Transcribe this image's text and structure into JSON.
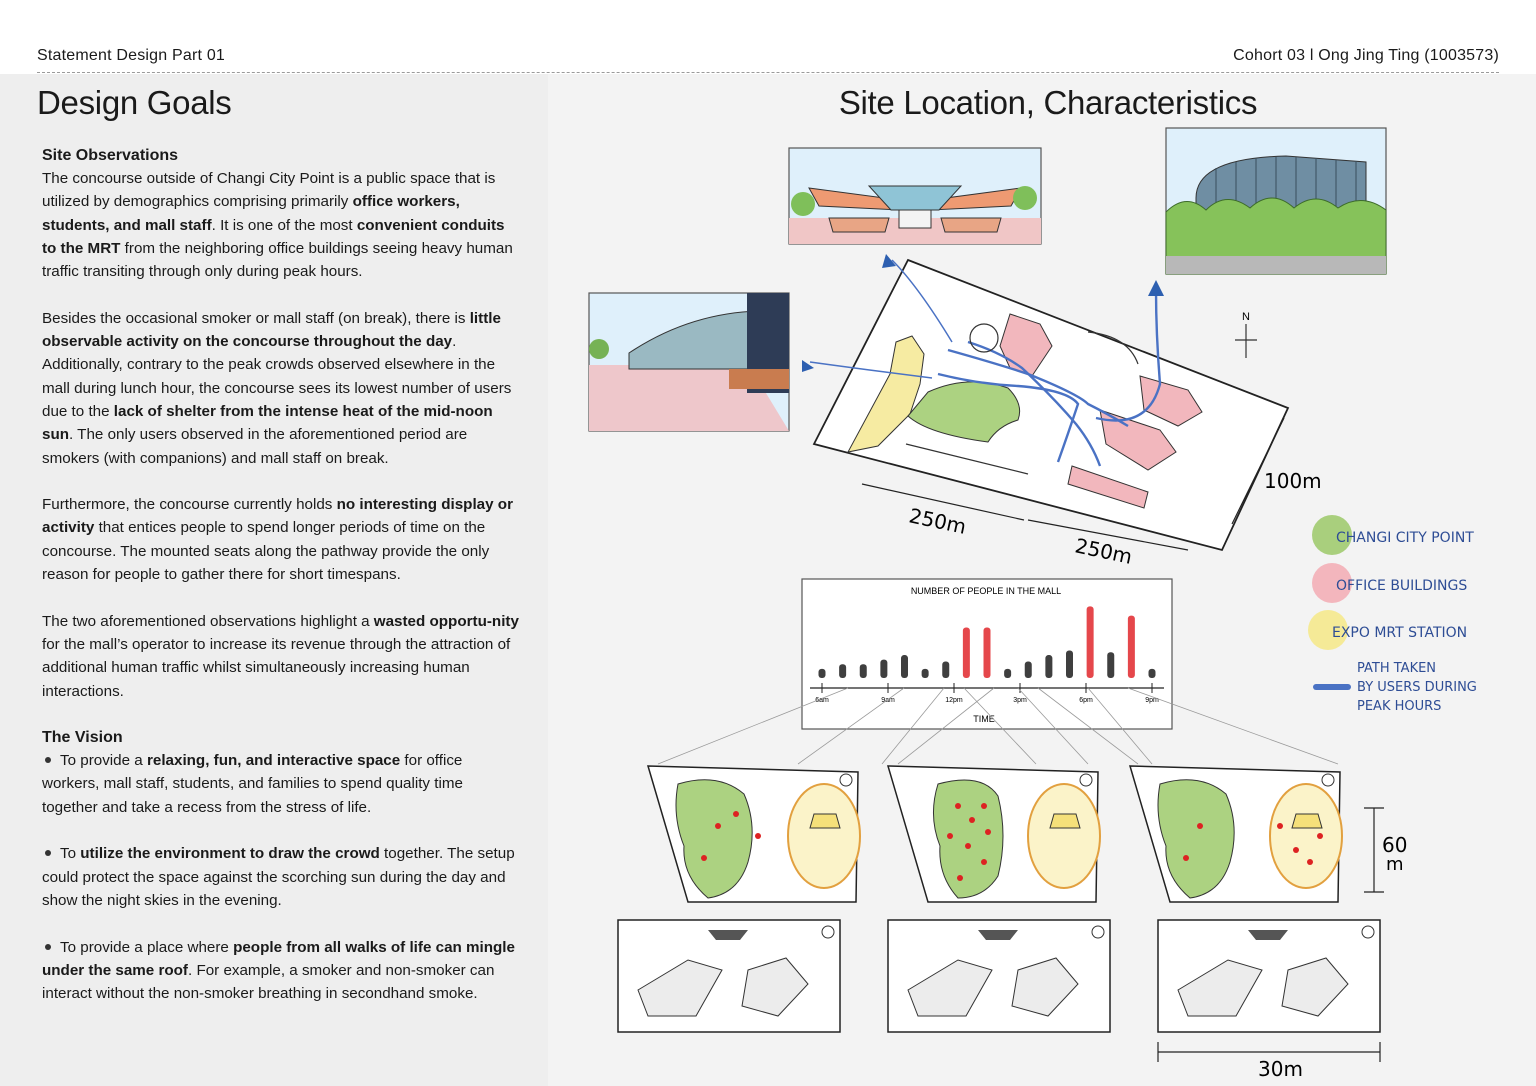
{
  "header": {
    "left": "Statement Design Part 01",
    "right": "Cohort 03 l Ong Jing Ting (1003573)"
  },
  "left": {
    "title": "Design Goals",
    "observations_heading": "Site Observations",
    "p1": [
      {
        "t": "The concourse outside of Changi City Point is a public space that is utilized by demographics comprising primarily ",
        "b": false
      },
      {
        "t": "office workers, students, and mall staff",
        "b": true
      },
      {
        "t": ". It is one of the most ",
        "b": false
      },
      {
        "t": "convenient conduits to the MRT",
        "b": true
      },
      {
        "t": " from the neighboring office buildings seeing heavy human traffic transiting through only during peak hours.",
        "b": false
      }
    ],
    "p2": [
      {
        "t": "Besides the occasional smoker or mall staff (on break), there is ",
        "b": false
      },
      {
        "t": "little observable activity on the concourse throughout the day",
        "b": true
      },
      {
        "t": ". Additionally, contrary to the peak crowds observed elsewhere in the mall during lunch hour, the concourse sees its lowest number of users due to the ",
        "b": false
      },
      {
        "t": "lack of shelter from the intense heat of the mid-noon sun",
        "b": true
      },
      {
        "t": ". The only users observed in the aforementioned period are smokers (with companions) and mall staff on break.",
        "b": false
      }
    ],
    "p3": [
      {
        "t": "Furthermore, the concourse currently holds ",
        "b": false
      },
      {
        "t": "no interesting display or activity",
        "b": true
      },
      {
        "t": " that entices people to spend longer periods of time on the concourse. The mounted seats along the pathway provide the only reason for people to gather there for short timespans.",
        "b": false
      }
    ],
    "p4": [
      {
        "t": "The two aforementioned observations highlight a ",
        "b": false
      },
      {
        "t": "wasted opportu-nity",
        "b": true
      },
      {
        "t": " for the mall’s operator to increase its revenue through the attraction of additional human traffic whilst simultaneously increasing human interactions.",
        "b": false
      }
    ],
    "vision_heading": "The Vision",
    "bullets": [
      [
        {
          "t": "To provide a ",
          "b": false
        },
        {
          "t": "relaxing, fun, and interactive space",
          "b": true
        },
        {
          "t": " for office workers, mall staff, students, and families to spend quality time together and take a recess from the stress of life.",
          "b": false
        }
      ],
      [
        {
          "t": "To ",
          "b": false
        },
        {
          "t": "utilize the environment to draw the crowd",
          "b": true
        },
        {
          "t": " together. The setup could protect the space against the scorching sun during the day and show the night skies in the evening.",
          "b": false
        }
      ],
      [
        {
          "t": "To provide a place where ",
          "b": false
        },
        {
          "t": "people from all walks of life can mingle under the same roof",
          "b": true
        },
        {
          "t": ". For example, a smoker and non-smoker can interact without the non-smoker breathing in secondhand smoke.",
          "b": false
        }
      ]
    ]
  },
  "right": {
    "title": "Site Location, Characteristics",
    "map": {
      "dim_250a": "250m",
      "dim_250b": "250m",
      "dim_100": "100m",
      "north": "N"
    },
    "legend": [
      {
        "label": "CHANGI CITY POINT",
        "color": "#a9cf7d"
      },
      {
        "label": "OFFICE BUILDINGS",
        "color": "#f3b6bd"
      },
      {
        "label": "EXPO MRT STATION",
        "color": "#f5ea97"
      },
      {
        "label": "PATH TAKEN BY USERS DURING PEAK HOURS",
        "lines": [
          "PATH TAKEN",
          "BY USERS DURING",
          "PEAK HOURS"
        ],
        "color": "#4a72c4"
      }
    ],
    "dims": {
      "height": "60",
      "height_unit": "m",
      "width": "30m"
    }
  },
  "chart_data": {
    "type": "bar",
    "title": "NUMBER OF PEOPLE IN THE MALL",
    "xlabel": "TIME",
    "ylabel": "",
    "tick_labels": [
      "6am",
      "9am",
      "12pm",
      "3pm",
      "6pm",
      "9pm"
    ],
    "values": [
      1,
      1.5,
      1.5,
      2,
      2.5,
      1,
      1.8,
      5.5,
      5.5,
      1,
      1.8,
      2.5,
      3,
      7.8,
      2.8,
      6.8,
      1
    ],
    "highlight": [
      false,
      false,
      false,
      false,
      false,
      false,
      false,
      true,
      true,
      false,
      false,
      false,
      false,
      true,
      false,
      true,
      false
    ],
    "colors": {
      "normal": "#3f3f3f",
      "highlight": "#e5474b"
    },
    "ylim": [
      0,
      8.5
    ]
  }
}
